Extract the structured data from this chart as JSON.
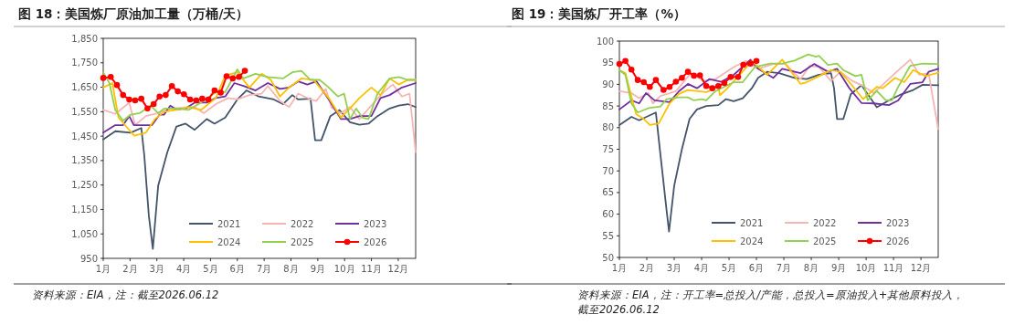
{
  "chart_data": [
    {
      "type": "line",
      "title": "图 18：美国炼厂原油加工量（万桶/天）",
      "annotations": [
        "资料来源：EIA，注：截至2026.06.12"
      ],
      "xlim": [
        1,
        12.65
      ],
      "xticks": [
        {
          "value": 1,
          "label": "1月"
        },
        {
          "value": 2,
          "label": "2月"
        },
        {
          "value": 3,
          "label": "3月"
        },
        {
          "value": 4,
          "label": "4月"
        },
        {
          "value": 5,
          "label": "5月"
        },
        {
          "value": 6,
          "label": "6月"
        },
        {
          "value": 7,
          "label": "7月"
        },
        {
          "value": 8,
          "label": "8月"
        },
        {
          "value": 9,
          "label": "9月"
        },
        {
          "value": 10,
          "label": "10月"
        },
        {
          "value": 11,
          "label": "11月"
        },
        {
          "value": 12,
          "label": "12月"
        }
      ],
      "ylim": [
        950,
        1850
      ],
      "yticks": [
        {
          "value": 950,
          "label": "950"
        },
        {
          "value": 1050,
          "label": "1,050"
        },
        {
          "value": 1150,
          "label": "1,150"
        },
        {
          "value": 1250,
          "label": "1,250"
        },
        {
          "value": 1350,
          "label": "1,350"
        },
        {
          "value": 1450,
          "label": "1,450"
        },
        {
          "value": 1550,
          "label": "1,550"
        },
        {
          "value": 1650,
          "label": "1,650"
        },
        {
          "value": 1750,
          "label": "1,750"
        },
        {
          "value": 1850,
          "label": "1,850"
        }
      ],
      "legend": "bottom right",
      "series": [
        {
          "name": "2021",
          "color": "#44546a",
          "x": [
            1,
            1.45,
            2.02,
            2.42,
            2.53,
            2.7,
            2.85,
            3.05,
            3.39,
            3.73,
            4.07,
            4.41,
            4.86,
            5.15,
            5.55,
            6,
            6.34,
            6.8,
            7.36,
            7.7,
            8.05,
            8.27,
            8.73,
            8.9,
            9.13,
            9.47,
            9.81,
            10.2,
            10.55,
            10.89,
            11.23,
            11.68,
            12.02,
            12.36,
            12.65
          ],
          "values": [
            1436,
            1470,
            1464,
            1483,
            1372,
            1125,
            989,
            1248,
            1384,
            1489,
            1501,
            1476,
            1520,
            1501,
            1526,
            1600,
            1637,
            1612,
            1600,
            1581,
            1618,
            1600,
            1603,
            1433,
            1433,
            1532,
            1557,
            1507,
            1497,
            1501,
            1532,
            1563,
            1575,
            1581,
            1569
          ]
        },
        {
          "name": "2022",
          "color": "#f8b4b4",
          "x": [
            1,
            1.45,
            1.97,
            2.19,
            2.59,
            3.05,
            3.5,
            4.41,
            4.75,
            5.2,
            5.66,
            6,
            6.45,
            6.91,
            7.14,
            7.59,
            7.93,
            8.27,
            8.73,
            8.95,
            9.3,
            9.52,
            9.86,
            10.2,
            10.55,
            11,
            11.45,
            11.8,
            12.14,
            12.42,
            12.65
          ],
          "values": [
            1557,
            1541,
            1587,
            1495,
            1532,
            1544,
            1563,
            1569,
            1544,
            1581,
            1606,
            1600,
            1618,
            1624,
            1655,
            1594,
            1569,
            1624,
            1600,
            1594,
            1643,
            1566,
            1544,
            1569,
            1520,
            1575,
            1630,
            1661,
            1612,
            1624,
            1384
          ]
        },
        {
          "name": "2023",
          "color": "#7030a0",
          "x": [
            1,
            1.45,
            1.74,
            1.97,
            2.14,
            2.82,
            3.1,
            3.27,
            3.5,
            3.73,
            4.07,
            4.41,
            4.86,
            5.2,
            5.55,
            5.89,
            6.23,
            6.68,
            7.14,
            7.59,
            7.93,
            8.27,
            8.61,
            8.95,
            9.41,
            9.86,
            10.2,
            10.55,
            11,
            11.34,
            11.68,
            12.14,
            12.65
          ],
          "values": [
            1464,
            1495,
            1495,
            1532,
            1495,
            1495,
            1538,
            1538,
            1575,
            1559,
            1563,
            1587,
            1587,
            1606,
            1612,
            1667,
            1655,
            1637,
            1667,
            1643,
            1649,
            1674,
            1661,
            1674,
            1600,
            1520,
            1520,
            1532,
            1532,
            1606,
            1618,
            1649,
            1667
          ]
        },
        {
          "name": "2024",
          "color": "#ffc000",
          "x": [
            1,
            1.34,
            1.57,
            1.91,
            2.16,
            2.59,
            2.93,
            3.27,
            3.73,
            4.18,
            4.64,
            5.2,
            5.55,
            6,
            6.45,
            6.91,
            7.25,
            7.59,
            7.93,
            8.39,
            8.84,
            9.41,
            9.86,
            10.2,
            10.55,
            11,
            11.34,
            11.68,
            12.02,
            12.36,
            12.65
          ],
          "values": [
            1649,
            1667,
            1526,
            1483,
            1452,
            1464,
            1520,
            1550,
            1557,
            1569,
            1557,
            1606,
            1698,
            1711,
            1649,
            1705,
            1680,
            1612,
            1649,
            1686,
            1680,
            1606,
            1526,
            1563,
            1606,
            1649,
            1618,
            1686,
            1661,
            1680,
            1680
          ]
        },
        {
          "name": "2025",
          "color": "#92d050",
          "x": [
            1,
            1.23,
            1.45,
            1.74,
            2.02,
            2.36,
            2.76,
            3.05,
            3.27,
            3.73,
            4.18,
            4.64,
            5.2,
            5.55,
            6,
            6.23,
            6.68,
            7.14,
            7.7,
            8.05,
            8.39,
            8.73,
            9.07,
            9.41,
            9.75,
            9.98,
            10.2,
            10.43,
            10.66,
            10.89,
            11.23,
            11.68,
            12.02,
            12.36,
            12.65
          ],
          "values": [
            1711,
            1667,
            1557,
            1513,
            1538,
            1544,
            1575,
            1544,
            1563,
            1563,
            1557,
            1587,
            1630,
            1630,
            1723,
            1686,
            1705,
            1692,
            1686,
            1711,
            1717,
            1680,
            1680,
            1649,
            1612,
            1624,
            1520,
            1563,
            1526,
            1520,
            1624,
            1686,
            1692,
            1680,
            1680
          ]
        },
        {
          "name": "2026",
          "color": "#ff0000",
          "marker": "circle",
          "x": [
            1,
            1.28,
            1.51,
            1.74,
            1.97,
            2.19,
            2.42,
            2.65,
            2.88,
            3.1,
            3.33,
            3.56,
            3.78,
            4.01,
            4.24,
            4.47,
            4.69,
            4.92,
            5.15,
            5.38,
            5.6,
            5.83,
            6.06,
            6.28
          ],
          "values": [
            1688,
            1692,
            1659,
            1618,
            1600,
            1596,
            1603,
            1563,
            1581,
            1612,
            1618,
            1655,
            1633,
            1621,
            1600,
            1596,
            1603,
            1600,
            1637,
            1628,
            1695,
            1686,
            1692,
            1717
          ]
        }
      ]
    },
    {
      "type": "line",
      "title": "图 19：美国炼厂开工率（%）",
      "annotations": [
        "资料来源：EIA，注：开工率=总投入/产能，总投入=原油投入+其他原料投入，截至2026.06.12"
      ],
      "xlim": [
        1,
        12.63
      ],
      "xticks": [
        {
          "value": 1,
          "label": "1月"
        },
        {
          "value": 2,
          "label": "2月"
        },
        {
          "value": 3,
          "label": "3月"
        },
        {
          "value": 4,
          "label": "4月"
        },
        {
          "value": 5,
          "label": "5月"
        },
        {
          "value": 6,
          "label": "6月"
        },
        {
          "value": 7,
          "label": "7月"
        },
        {
          "value": 8,
          "label": "8月"
        },
        {
          "value": 9,
          "label": "9月"
        },
        {
          "value": 10,
          "label": "10月"
        },
        {
          "value": 11,
          "label": "11月"
        },
        {
          "value": 12,
          "label": "12月"
        }
      ],
      "ylim": [
        50,
        100
      ],
      "yticks": [
        50,
        55,
        60,
        65,
        70,
        75,
        80,
        85,
        90,
        95,
        100
      ],
      "legend": "bottom right",
      "series": [
        {
          "name": "2021",
          "color": "#44546a",
          "x": [
            1,
            1.44,
            1.72,
            2.33,
            2.5,
            2.72,
            2.81,
            3,
            3.28,
            3.56,
            3.83,
            4.17,
            4.61,
            4.89,
            5.17,
            5.5,
            5.83,
            6.06,
            6.39,
            6.83,
            7.39,
            7.83,
            8.28,
            8.72,
            8.83,
            8.94,
            9.17,
            9.44,
            9.83,
            10.06,
            10.39,
            10.83,
            11.28,
            11.72,
            12.06,
            12.63
          ],
          "values": [
            80.6,
            82.5,
            81.7,
            83.5,
            73.6,
            61,
            56,
            66.6,
            75,
            82,
            84.2,
            85,
            85.2,
            86.6,
            86.1,
            86.8,
            89.1,
            91.5,
            92.9,
            92.6,
            91.5,
            91.2,
            92.2,
            92.6,
            89.1,
            82,
            82,
            87.7,
            89.8,
            87.7,
            84.7,
            86.3,
            87.7,
            88.7,
            89.9,
            89.8
          ]
        },
        {
          "name": "2022",
          "color": "#f8b4b4",
          "x": [
            1,
            1.44,
            1.72,
            2.06,
            2.22,
            2.5,
            3.06,
            3.61,
            4.06,
            4.5,
            5.17,
            5.61,
            6.06,
            6.61,
            7.06,
            7.61,
            7.94,
            8.28,
            8.72,
            9.06,
            9.5,
            9.83,
            10.28,
            11.06,
            11.61,
            11.94,
            12.28,
            12.63
          ],
          "values": [
            88.4,
            88,
            86.8,
            88,
            85.6,
            87.3,
            88.4,
            92.6,
            90.8,
            91.2,
            94,
            95.4,
            93.6,
            94.7,
            94.7,
            91.2,
            94.3,
            94,
            90.8,
            92.9,
            90.8,
            89.8,
            88,
            92.6,
            95.7,
            92.2,
            92.6,
            79.6
          ]
        },
        {
          "name": "2023",
          "color": "#7030a0",
          "x": [
            1,
            1.44,
            1.72,
            1.97,
            2.28,
            2.83,
            3.17,
            3.5,
            3.83,
            4.28,
            4.72,
            5.17,
            5.78,
            6.06,
            6.61,
            6.94,
            7.61,
            8.11,
            8.61,
            8.94,
            9.39,
            9.83,
            10.28,
            10.83,
            11.17,
            11.61,
            12.06,
            12.28,
            12.63
          ],
          "values": [
            84.2,
            86.3,
            85.6,
            88,
            86.3,
            85.9,
            88.4,
            90.1,
            89.1,
            91.2,
            90.6,
            92.2,
            95.7,
            93.6,
            91.5,
            93.6,
            92.6,
            94.7,
            92.9,
            93.6,
            89.1,
            85.7,
            85.6,
            85.2,
            86.3,
            90.1,
            90.5,
            92.9,
            93.6
          ]
        },
        {
          "name": "2024",
          "color": "#ffc000",
          "x": [
            1,
            1.22,
            1.61,
            1.89,
            2.11,
            2.44,
            2.83,
            3.17,
            3.5,
            4.17,
            4.61,
            4.67,
            4.94,
            5.39,
            5.83,
            6.39,
            6.94,
            7.61,
            7.83,
            8.28,
            8.72,
            9.06,
            9.39,
            9.89,
            10.39,
            10.61,
            11.06,
            11.39,
            11.72,
            12.17,
            12.63
          ],
          "values": [
            93.3,
            92.6,
            83.1,
            82,
            80.6,
            81,
            85.6,
            87.8,
            88.7,
            88.2,
            89.4,
            87.5,
            89.1,
            92.2,
            95.4,
            92.2,
            95.7,
            90.1,
            90.5,
            91.9,
            93.3,
            92.9,
            90.5,
            86.6,
            89.4,
            89.1,
            91.5,
            90.5,
            93.3,
            91.9,
            92.7
          ]
        },
        {
          "name": "2025",
          "color": "#92d050",
          "x": [
            1,
            1.22,
            1.44,
            1.67,
            2.06,
            2.5,
            2.72,
            3.17,
            3.5,
            3.72,
            4,
            4.17,
            4.5,
            5.17,
            5.5,
            5.94,
            6.5,
            6.94,
            7.39,
            7.89,
            8.17,
            8.28,
            8.61,
            8.94,
            9.17,
            9.39,
            9.61,
            9.83,
            10.06,
            10.39,
            10.72,
            10.94,
            11.17,
            11.61,
            12.06,
            12.63
          ],
          "values": [
            93.3,
            92.2,
            85.6,
            83.5,
            84.5,
            84.9,
            86.6,
            87,
            87,
            86.3,
            86.6,
            86.3,
            88.4,
            90.5,
            90.5,
            94,
            94.8,
            94.8,
            95.5,
            96.9,
            96.4,
            96.6,
            94.5,
            94.8,
            93.3,
            92.6,
            91.9,
            92.2,
            86.3,
            88.5,
            86.3,
            86.3,
            89.4,
            94.3,
            94.8,
            94.7
          ]
        },
        {
          "name": "2026",
          "color": "#ff0000",
          "marker": "circle",
          "x": [
            1,
            1.22,
            1.44,
            1.67,
            1.89,
            2.11,
            2.33,
            2.61,
            2.83,
            3.06,
            3.28,
            3.5,
            3.72,
            3.94,
            4.17,
            4.39,
            4.61,
            4.83,
            5.06,
            5.33,
            5.52,
            5.78,
            6
          ],
          "values": [
            94.7,
            95.4,
            93.4,
            91,
            90.5,
            89.4,
            91,
            88.7,
            89.4,
            90.6,
            91.5,
            92.9,
            92,
            92.1,
            89.6,
            89.1,
            89.6,
            90.3,
            91.7,
            91.7,
            94.5,
            94.8,
            95.4
          ]
        }
      ]
    }
  ]
}
